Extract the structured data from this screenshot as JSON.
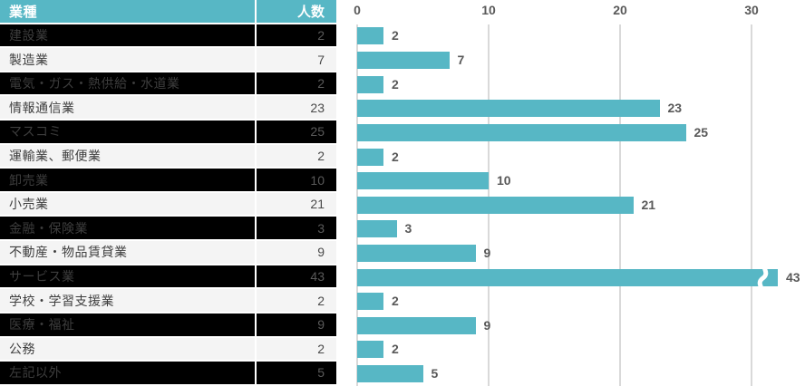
{
  "table": {
    "industry_header": "業種",
    "count_header": "人数",
    "rows": [
      {
        "label": "建設業",
        "value": 2,
        "variant": "dark"
      },
      {
        "label": "製造業",
        "value": 7,
        "variant": "light"
      },
      {
        "label": "電気・ガス・熱供給・水道業",
        "value": 2,
        "variant": "dark"
      },
      {
        "label": "情報通信業",
        "value": 23,
        "variant": "light"
      },
      {
        "label": "マスコミ",
        "value": 25,
        "variant": "dark"
      },
      {
        "label": "運輸業、郵便業",
        "value": 2,
        "variant": "light"
      },
      {
        "label": "卸売業",
        "value": 10,
        "variant": "dark"
      },
      {
        "label": "小売業",
        "value": 21,
        "variant": "light"
      },
      {
        "label": "金融・保険業",
        "value": 3,
        "variant": "dark"
      },
      {
        "label": "不動産・物品賃貸業",
        "value": 9,
        "variant": "light"
      },
      {
        "label": "サービス業",
        "value": 43,
        "variant": "dark"
      },
      {
        "label": "学校・学習支援業",
        "value": 2,
        "variant": "light"
      },
      {
        "label": "医療・福祉",
        "value": 9,
        "variant": "dark"
      },
      {
        "label": "公務",
        "value": 2,
        "variant": "light"
      },
      {
        "label": "左記以外",
        "value": 5,
        "variant": "dark"
      }
    ]
  },
  "chart_data": {
    "type": "bar",
    "orientation": "horizontal",
    "title": "",
    "categories": [
      "建設業",
      "製造業",
      "電気・ガス・熱供給・水道業",
      "情報通信業",
      "マスコミ",
      "運輸業、郵便業",
      "卸売業",
      "小売業",
      "金融・保険業",
      "不動産・物品賃貸業",
      "サービス業",
      "学校・学習支援業",
      "医療・福祉",
      "公務",
      "左記以外"
    ],
    "values": [
      2,
      7,
      2,
      23,
      25,
      2,
      10,
      21,
      3,
      9,
      43,
      2,
      9,
      2,
      5
    ],
    "x_ticks": [
      "0",
      "10",
      "20",
      "30"
    ],
    "x_tick_values": [
      0,
      10,
      20,
      30
    ],
    "xlim": [
      0,
      32
    ],
    "axis_break": {
      "category": "サービス業",
      "value": 43,
      "clipped_at": 32
    },
    "value_labels_shown": true,
    "grid": true,
    "legend": "none",
    "bar_color": "#57b7c5"
  },
  "colors": {
    "accent_teal": "#57b7c5",
    "header_text": "#ffffff",
    "row_dark_bg": "#000000",
    "row_light_bg": "#f4f4f4",
    "row_separator": "#ffffff",
    "gridline": "#d9d9d9",
    "axis_label": "#595959",
    "value_label": "#595959",
    "break_mark": "#ffffff"
  }
}
